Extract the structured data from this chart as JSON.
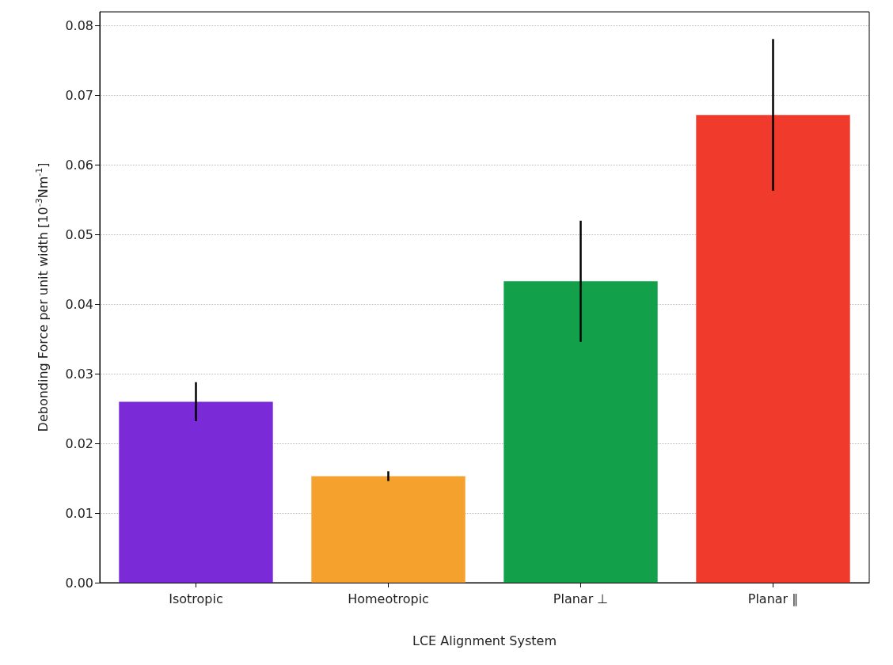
{
  "chart_data": {
    "type": "bar",
    "xlabel": "LCE Alignment System",
    "ylabel": "Debonding Force per unit width [10$^{-3}$Nm$^{-1}$]",
    "categories": [
      "Isotropic",
      "Homeotropic",
      "Planar ⊥",
      "Planar ∥"
    ],
    "values": [
      0.026,
      0.0153,
      0.0433,
      0.0672
    ],
    "errors": [
      0.0028,
      0.0007,
      0.0087,
      0.0109
    ],
    "colors": [
      "#7b2ad8",
      "#f5a12e",
      "#13a04a",
      "#f03a2c"
    ],
    "ylim": [
      0,
      0.082
    ],
    "yticks": [
      {
        "value": 0,
        "label": "0.00"
      },
      {
        "value": 0.01,
        "label": "0.01"
      },
      {
        "value": 0.02,
        "label": "0.02"
      },
      {
        "value": 0.03,
        "label": "0.03"
      },
      {
        "value": 0.04,
        "label": "0.04"
      },
      {
        "value": 0.05,
        "label": "0.05"
      },
      {
        "value": 0.06,
        "label": "0.06"
      },
      {
        "value": 0.07,
        "label": "0.07"
      },
      {
        "value": 0.08,
        "label": "0.08"
      }
    ],
    "grid": "y"
  }
}
